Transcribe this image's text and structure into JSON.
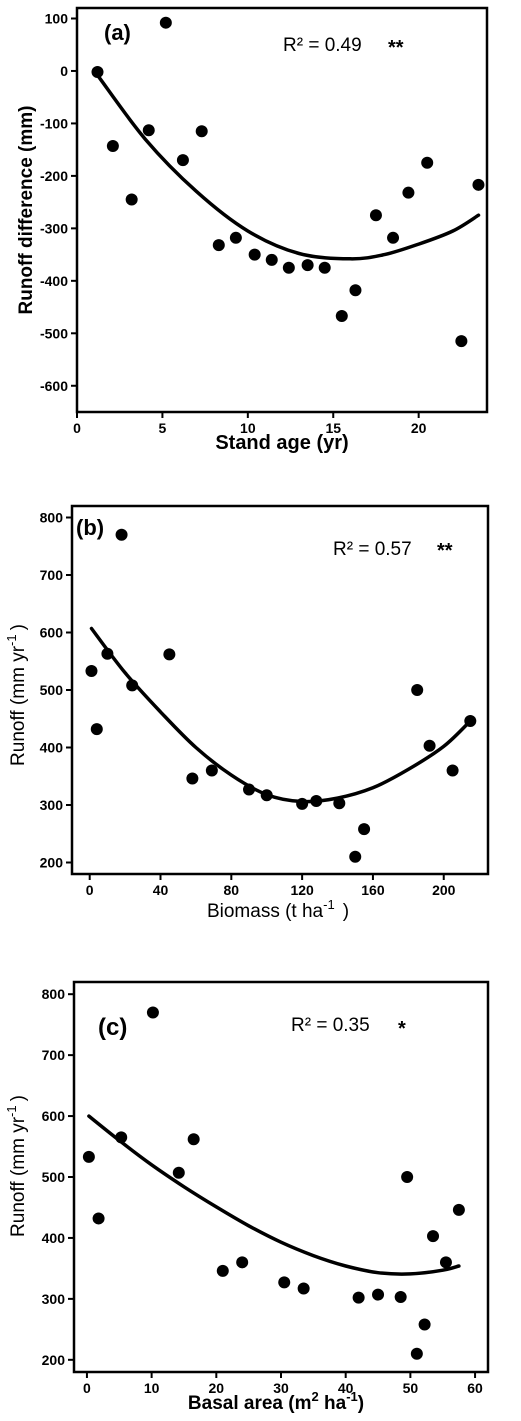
{
  "chart_data": [
    {
      "type": "scatter",
      "panel_label": "(a)",
      "xlabel": "Stand age (yr)",
      "ylabel": "Runoff difference (mm)",
      "xlim": [
        0,
        24
      ],
      "ylim": [
        -650,
        120
      ],
      "xticks": [
        0,
        5,
        10,
        15,
        20
      ],
      "yticks": [
        100,
        0,
        -100,
        -200,
        -300,
        -400,
        -500,
        -600
      ],
      "r2_label": "R² = 0.49",
      "significance": "**",
      "points": [
        {
          "x": 1.2,
          "y": -2
        },
        {
          "x": 2.1,
          "y": -143
        },
        {
          "x": 3.2,
          "y": -245
        },
        {
          "x": 4.2,
          "y": -113
        },
        {
          "x": 5.2,
          "y": 92
        },
        {
          "x": 6.2,
          "y": -170
        },
        {
          "x": 7.3,
          "y": -115
        },
        {
          "x": 8.3,
          "y": -332
        },
        {
          "x": 9.3,
          "y": -318
        },
        {
          "x": 10.4,
          "y": -350
        },
        {
          "x": 11.4,
          "y": -360
        },
        {
          "x": 12.4,
          "y": -375
        },
        {
          "x": 13.5,
          "y": -370
        },
        {
          "x": 14.5,
          "y": -375
        },
        {
          "x": 15.5,
          "y": -467
        },
        {
          "x": 16.3,
          "y": -418
        },
        {
          "x": 17.5,
          "y": -275
        },
        {
          "x": 18.5,
          "y": -318
        },
        {
          "x": 19.4,
          "y": -232
        },
        {
          "x": 20.5,
          "y": -175
        },
        {
          "x": 22.5,
          "y": -515
        },
        {
          "x": 23.5,
          "y": -217
        }
      ],
      "fit_curve": [
        {
          "x": 1.2,
          "y": -8
        },
        {
          "x": 4,
          "y": -130
        },
        {
          "x": 7,
          "y": -230
        },
        {
          "x": 10,
          "y": -305
        },
        {
          "x": 13,
          "y": -348
        },
        {
          "x": 16,
          "y": -358
        },
        {
          "x": 18,
          "y": -350
        },
        {
          "x": 20,
          "y": -330
        },
        {
          "x": 22,
          "y": -305
        },
        {
          "x": 23.5,
          "y": -275
        }
      ]
    },
    {
      "type": "scatter",
      "panel_label": "(b)",
      "xlabel_main": "Biomass (t ha",
      "xlabel_sup": "-1",
      "xlabel_end": ")",
      "ylabel_main": "Runoff (mm yr",
      "ylabel_sup": "-1",
      "ylabel_end": ")",
      "xlim": [
        -10,
        225
      ],
      "ylim": [
        180,
        820
      ],
      "xticks": [
        0,
        40,
        80,
        120,
        160,
        200
      ],
      "yticks": [
        200,
        300,
        400,
        500,
        600,
        700,
        800
      ],
      "r2_label": "R² = 0.57",
      "significance": "**",
      "points": [
        {
          "x": 1,
          "y": 533
        },
        {
          "x": 4,
          "y": 432
        },
        {
          "x": 10,
          "y": 563
        },
        {
          "x": 18,
          "y": 770
        },
        {
          "x": 24,
          "y": 508
        },
        {
          "x": 45,
          "y": 562
        },
        {
          "x": 58,
          "y": 346
        },
        {
          "x": 69,
          "y": 360
        },
        {
          "x": 90,
          "y": 327
        },
        {
          "x": 100,
          "y": 317
        },
        {
          "x": 120,
          "y": 302
        },
        {
          "x": 128,
          "y": 307
        },
        {
          "x": 141,
          "y": 303
        },
        {
          "x": 150,
          "y": 210
        },
        {
          "x": 155,
          "y": 258
        },
        {
          "x": 185,
          "y": 500
        },
        {
          "x": 192,
          "y": 403
        },
        {
          "x": 205,
          "y": 360
        },
        {
          "x": 215,
          "y": 446
        }
      ],
      "fit_curve": [
        {
          "x": 1,
          "y": 607
        },
        {
          "x": 20,
          "y": 530
        },
        {
          "x": 40,
          "y": 462
        },
        {
          "x": 60,
          "y": 400
        },
        {
          "x": 80,
          "y": 352
        },
        {
          "x": 100,
          "y": 318
        },
        {
          "x": 120,
          "y": 306
        },
        {
          "x": 140,
          "y": 312
        },
        {
          "x": 160,
          "y": 330
        },
        {
          "x": 180,
          "y": 362
        },
        {
          "x": 200,
          "y": 402
        },
        {
          "x": 215,
          "y": 446
        }
      ]
    },
    {
      "type": "scatter",
      "panel_label": "(c)",
      "xlabel_main": "Basal area (m",
      "xlabel_sup1": "2",
      "xlabel_mid": " ha",
      "xlabel_sup2": "-1",
      "xlabel_end": ")",
      "ylabel_main": "Runoff (mm yr",
      "ylabel_sup": "-1",
      "ylabel_end": ")",
      "xlim": [
        -2,
        62
      ],
      "ylim": [
        180,
        820
      ],
      "xticks": [
        0,
        10,
        20,
        30,
        40,
        50,
        60
      ],
      "yticks": [
        200,
        300,
        400,
        500,
        600,
        700,
        800
      ],
      "r2_label": "R² = 0.35",
      "significance": "*",
      "points": [
        {
          "x": 0.3,
          "y": 533
        },
        {
          "x": 1.8,
          "y": 432
        },
        {
          "x": 5.3,
          "y": 565
        },
        {
          "x": 10.2,
          "y": 770
        },
        {
          "x": 14.2,
          "y": 507
        },
        {
          "x": 16.5,
          "y": 562
        },
        {
          "x": 21,
          "y": 346
        },
        {
          "x": 24,
          "y": 360
        },
        {
          "x": 30.5,
          "y": 327
        },
        {
          "x": 33.5,
          "y": 317
        },
        {
          "x": 42,
          "y": 302
        },
        {
          "x": 45,
          "y": 307
        },
        {
          "x": 48.5,
          "y": 303
        },
        {
          "x": 49.5,
          "y": 500
        },
        {
          "x": 51,
          "y": 210
        },
        {
          "x": 52.2,
          "y": 258
        },
        {
          "x": 53.5,
          "y": 403
        },
        {
          "x": 55.5,
          "y": 360
        },
        {
          "x": 57.5,
          "y": 446
        }
      ],
      "fit_curve": [
        {
          "x": 0.3,
          "y": 600
        },
        {
          "x": 5,
          "y": 560
        },
        {
          "x": 10,
          "y": 520
        },
        {
          "x": 15,
          "y": 484
        },
        {
          "x": 20,
          "y": 451
        },
        {
          "x": 25,
          "y": 420
        },
        {
          "x": 30,
          "y": 393
        },
        {
          "x": 35,
          "y": 371
        },
        {
          "x": 40,
          "y": 354
        },
        {
          "x": 45,
          "y": 343
        },
        {
          "x": 50,
          "y": 341
        },
        {
          "x": 55,
          "y": 347
        },
        {
          "x": 57.5,
          "y": 354
        }
      ]
    }
  ]
}
